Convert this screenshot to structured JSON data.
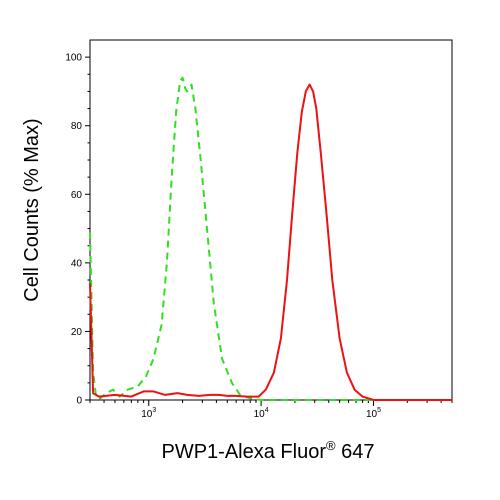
{
  "chart_data": {
    "type": "line",
    "title": "",
    "xlabel": "PWP1-Alexa Fluor",
    "xlabel_mark": "®",
    "xlabel_suffix": " 647",
    "ylabel": "Cell Counts (% Max)",
    "x_scale": "log",
    "xlim": [
      300,
      500000
    ],
    "ylim": [
      0,
      105
    ],
    "y_ticks": [
      0,
      20,
      40,
      60,
      80,
      100
    ],
    "x_ticks": [
      {
        "base": "10",
        "exp": "3",
        "value": 1000
      },
      {
        "base": "10",
        "exp": "4",
        "value": 10000
      },
      {
        "base": "10",
        "exp": "5",
        "value": 100000
      }
    ],
    "grid": false,
    "legend": "none",
    "series": [
      {
        "color": "#33dd22",
        "style": "dashed",
        "points": [
          [
            300,
            49
          ],
          [
            320,
            8
          ],
          [
            340,
            1
          ],
          [
            370,
            0.5
          ],
          [
            420,
            2
          ],
          [
            480,
            3
          ],
          [
            550,
            1
          ],
          [
            650,
            3
          ],
          [
            800,
            4
          ],
          [
            950,
            7
          ],
          [
            1100,
            12
          ],
          [
            1300,
            22
          ],
          [
            1450,
            40
          ],
          [
            1600,
            65
          ],
          [
            1750,
            84
          ],
          [
            1900,
            93
          ],
          [
            2000,
            94
          ],
          [
            2100,
            91
          ],
          [
            2200,
            90
          ],
          [
            2400,
            92
          ],
          [
            2600,
            85
          ],
          [
            2900,
            70
          ],
          [
            3300,
            50
          ],
          [
            3800,
            28
          ],
          [
            4500,
            12
          ],
          [
            5500,
            5
          ],
          [
            6500,
            1.5
          ],
          [
            8000,
            0.5
          ],
          [
            10000,
            0
          ],
          [
            100000,
            0
          ],
          [
            500000,
            0
          ]
        ]
      },
      {
        "color": "#ee1111",
        "style": "solid",
        "points": [
          [
            300,
            34
          ],
          [
            320,
            2
          ],
          [
            360,
            1
          ],
          [
            500,
            1.5
          ],
          [
            700,
            1
          ],
          [
            900,
            2.5
          ],
          [
            1100,
            2.5
          ],
          [
            1400,
            1.5
          ],
          [
            1800,
            2
          ],
          [
            2200,
            1.5
          ],
          [
            2800,
            1.2
          ],
          [
            3500,
            1.5
          ],
          [
            4200,
            1.5
          ],
          [
            5000,
            1.2
          ],
          [
            6000,
            1.2
          ],
          [
            7500,
            1
          ],
          [
            9500,
            1
          ],
          [
            11000,
            3
          ],
          [
            13000,
            8
          ],
          [
            15000,
            18
          ],
          [
            17000,
            35
          ],
          [
            19000,
            55
          ],
          [
            21000,
            72
          ],
          [
            23000,
            84
          ],
          [
            25000,
            90
          ],
          [
            27000,
            92
          ],
          [
            29000,
            90
          ],
          [
            31000,
            85
          ],
          [
            34000,
            72
          ],
          [
            38000,
            55
          ],
          [
            43000,
            35
          ],
          [
            50000,
            18
          ],
          [
            58000,
            8
          ],
          [
            68000,
            3
          ],
          [
            80000,
            1
          ],
          [
            100000,
            0
          ],
          [
            500000,
            0
          ]
        ]
      }
    ]
  }
}
